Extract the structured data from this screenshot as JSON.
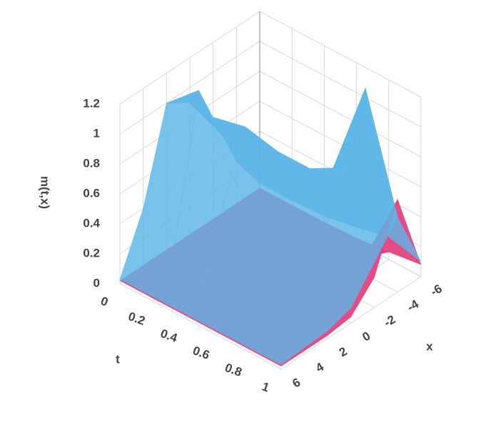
{
  "chart_data": {
    "type": "surface",
    "xlabel": "x",
    "ylabel": "t",
    "zlabel": "m(t,x)",
    "xlim": [
      -6,
      6
    ],
    "xticks": [
      -6,
      -4,
      -2,
      0,
      2,
      4,
      6
    ],
    "tlim": [
      0,
      1
    ],
    "tticks": [
      0,
      0.2,
      0.4,
      0.6,
      0.8,
      1
    ],
    "zlim": [
      0,
      1.2
    ],
    "zticks": [
      0,
      0.2,
      0.4,
      0.6,
      0.8,
      1,
      1.2
    ],
    "grid": true,
    "x": [
      -6,
      -4,
      -2,
      0,
      2,
      4,
      6
    ],
    "t": [
      0,
      0.2,
      0.4,
      0.6,
      0.8,
      1
    ],
    "series": [
      {
        "color": "#e2427e",
        "opacity": 0.95,
        "z": [
          [
            0.02,
            0.02,
            0.02,
            0.02,
            0.02,
            0.02,
            0.02
          ],
          [
            0.02,
            0.02,
            0.02,
            0.02,
            0.02,
            0.02,
            0.02
          ],
          [
            0.02,
            0.03,
            0.02,
            0.02,
            0.02,
            0.02,
            0.02
          ],
          [
            0.03,
            0.05,
            0.03,
            0.02,
            0.02,
            0.02,
            0.02
          ],
          [
            0.05,
            0.12,
            0.05,
            0.02,
            0.02,
            0.02,
            0.02
          ],
          [
            0.08,
            0.62,
            0.2,
            0.04,
            0.02,
            0.02,
            0.02
          ]
        ]
      },
      {
        "color": "#5cb6e6",
        "opacity": 0.82,
        "z": [
          [
            0.05,
            0.3,
            0.7,
            0.9,
            1.0,
            0.4,
            0.03
          ],
          [
            0.05,
            0.35,
            0.75,
            0.8,
            1.2,
            0.3,
            0.03
          ],
          [
            0.06,
            0.4,
            0.7,
            0.7,
            0.75,
            0.2,
            0.03
          ],
          [
            0.1,
            0.6,
            0.7,
            0.65,
            0.5,
            0.1,
            0.03
          ],
          [
            0.15,
            1.25,
            0.75,
            0.4,
            0.2,
            0.05,
            0.03
          ],
          [
            0.1,
            0.5,
            0.3,
            0.1,
            0.05,
            0.04,
            0.03
          ]
        ]
      }
    ]
  }
}
